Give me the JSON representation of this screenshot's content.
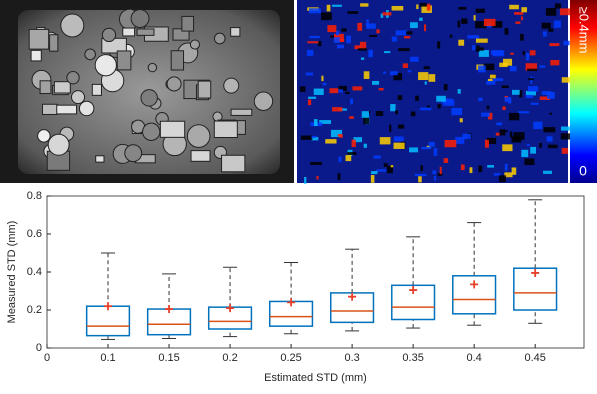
{
  "colorbar": {
    "max_label": "≥0.4mm",
    "min_label": "0"
  },
  "chart_data": {
    "type": "box",
    "x_label": "Estimated STD (mm)",
    "y_label": "Measured STD (mm)",
    "x": [
      1,
      2,
      3,
      4,
      5,
      6,
      7,
      8
    ],
    "xlim": [
      0,
      8.8
    ],
    "xticks": [
      {
        "value": 0,
        "label": "0"
      },
      {
        "value": 1,
        "label": "0.1"
      },
      {
        "value": 2,
        "label": "0.15"
      },
      {
        "value": 3,
        "label": "0.2"
      },
      {
        "value": 4,
        "label": "0.25"
      },
      {
        "value": 5,
        "label": "0.3"
      },
      {
        "value": 6,
        "label": "0.35"
      },
      {
        "value": 7,
        "label": "0.4"
      },
      {
        "value": 8,
        "label": "0.45"
      }
    ],
    "ylim": [
      0,
      0.8
    ],
    "yticks": [
      0,
      0.2,
      0.4,
      0.6,
      0.8
    ],
    "whisker_low": [
      0.045,
      0.05,
      0.06,
      0.075,
      0.09,
      0.105,
      0.12,
      0.13
    ],
    "q1": [
      0.065,
      0.07,
      0.1,
      0.115,
      0.135,
      0.15,
      0.18,
      0.2
    ],
    "median": [
      0.115,
      0.125,
      0.14,
      0.165,
      0.195,
      0.215,
      0.255,
      0.29
    ],
    "q3": [
      0.22,
      0.205,
      0.215,
      0.245,
      0.29,
      0.33,
      0.38,
      0.42
    ],
    "whisker_high": [
      0.5,
      0.39,
      0.425,
      0.45,
      0.52,
      0.585,
      0.66,
      0.78
    ],
    "mean": [
      0.22,
      0.205,
      0.21,
      0.24,
      0.27,
      0.305,
      0.335,
      0.395
    ],
    "box_color": "#0072bd",
    "median_color": "#d95319",
    "mean_color": "#e8402a",
    "whisker_color": "#333333"
  }
}
